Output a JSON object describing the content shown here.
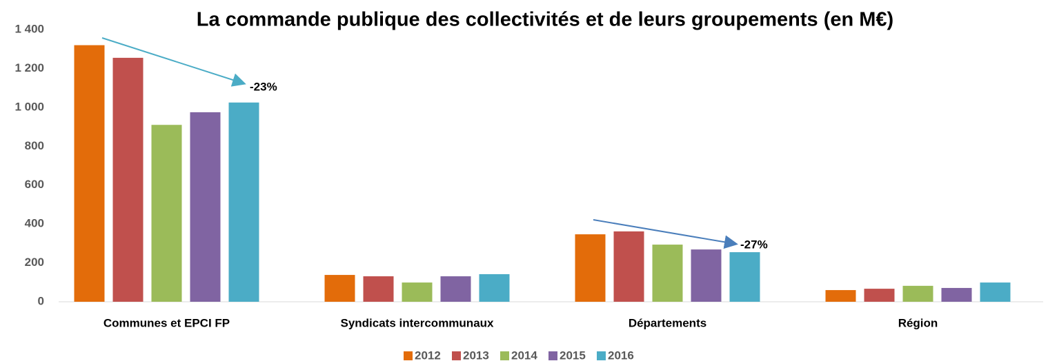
{
  "chart_data": {
    "type": "bar",
    "title": "La commande publique des collectivités et de leurs groupements (en M€)",
    "categories": [
      "Communes et EPCI FP",
      "Syndicats intercommunaux",
      "Départements",
      "Région"
    ],
    "series": [
      {
        "name": "2012",
        "color": "#e36c0a",
        "values": [
          1320,
          138,
          347,
          60
        ]
      },
      {
        "name": "2013",
        "color": "#c0504d",
        "values": [
          1255,
          131,
          362,
          67
        ]
      },
      {
        "name": "2014",
        "color": "#9bbb59",
        "values": [
          910,
          99,
          294,
          82
        ]
      },
      {
        "name": "2015",
        "color": "#8064a2",
        "values": [
          975,
          131,
          269,
          71
        ]
      },
      {
        "name": "2016",
        "color": "#4bacc6",
        "values": [
          1025,
          142,
          255,
          99
        ]
      }
    ],
    "ylim": [
      0,
      1400
    ],
    "yticks": [
      0,
      200,
      400,
      600,
      800,
      {
        "value": 1000,
        "label": "1 000"
      },
      {
        "value": 1200,
        "label": "1 200"
      },
      {
        "value": 1400,
        "label": "1 400"
      }
    ],
    "annotations": [
      "-23%",
      "-27%"
    ],
    "legend": "bottom"
  }
}
